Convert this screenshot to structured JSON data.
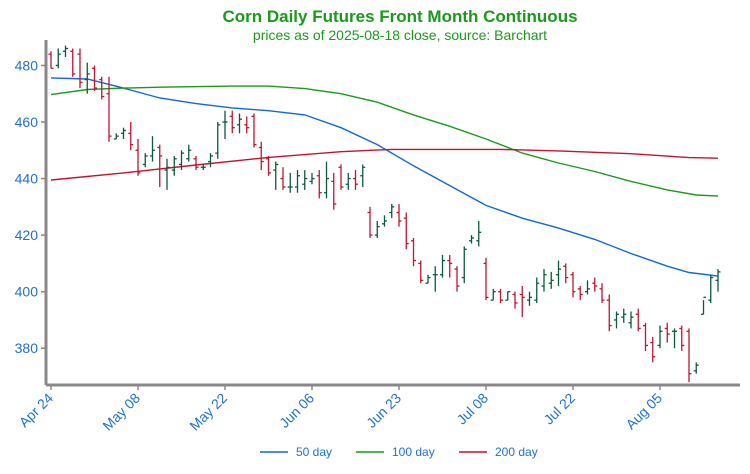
{
  "chart_data": {
    "type": "ohlc",
    "title": "Corn Daily Futures Front Month Continuous",
    "subtitle": "prices as of 2025-08-18 close, source: Barchart",
    "xlabel": "",
    "ylabel": "",
    "ylim": [
      367,
      489
    ],
    "y_ticks": [
      380,
      400,
      420,
      440,
      460,
      480
    ],
    "x_ticks": [
      "Apr 24",
      "May 08",
      "May 22",
      "Jun 06",
      "Jun 23",
      "Jul 08",
      "Jul 22",
      "Aug 05"
    ],
    "grid": false,
    "legend_position": "bottom",
    "colors": {
      "title": "#1a9a1a",
      "axis_text": "#1f6fd9",
      "up": "#0c5a3c",
      "down": "#c0152f",
      "ma50": "#1166dd",
      "ma100": "#1a9a1a",
      "ma200": "#c0152f",
      "axis": "#888888"
    },
    "ohlc": [
      [
        484,
        485,
        479,
        479
      ],
      [
        480,
        486,
        479,
        484
      ],
      [
        485,
        487,
        483,
        486
      ],
      [
        485,
        486,
        476,
        477
      ],
      [
        484,
        486,
        472,
        474
      ],
      [
        475,
        481,
        470,
        477
      ],
      [
        479,
        480,
        471,
        472
      ],
      [
        475,
        476,
        468,
        469
      ],
      [
        470,
        476,
        453,
        455
      ],
      [
        454,
        456,
        454,
        455
      ],
      [
        456,
        458,
        454,
        457
      ],
      [
        456,
        460,
        450,
        452
      ],
      [
        450,
        454,
        441,
        442
      ],
      [
        445,
        449,
        444,
        448
      ],
      [
        448,
        455,
        446,
        450
      ],
      [
        451,
        452,
        437,
        448
      ],
      [
        443,
        447,
        436,
        444
      ],
      [
        443,
        448,
        441,
        447
      ],
      [
        445,
        450,
        443,
        449
      ],
      [
        447,
        452,
        446,
        450
      ],
      [
        447,
        448,
        443,
        444
      ],
      [
        444,
        445,
        443,
        444
      ],
      [
        446,
        449,
        444,
        448
      ],
      [
        449,
        460,
        447,
        459
      ],
      [
        460,
        464,
        454,
        460
      ],
      [
        462,
        464,
        456,
        458
      ],
      [
        459,
        463,
        456,
        461
      ],
      [
        459,
        462,
        456,
        458
      ],
      [
        462,
        463,
        451,
        452
      ],
      [
        451,
        453,
        443,
        446
      ],
      [
        447,
        448,
        441,
        442
      ],
      [
        443,
        446,
        436,
        445
      ],
      [
        440,
        444,
        436,
        437
      ],
      [
        437,
        442,
        435,
        437
      ],
      [
        437,
        443,
        435,
        441
      ],
      [
        438,
        443,
        436,
        440
      ],
      [
        439,
        442,
        438,
        440
      ],
      [
        441,
        443,
        433,
        435
      ],
      [
        435,
        446,
        433,
        440
      ],
      [
        439,
        442,
        429,
        431
      ],
      [
        444,
        445,
        436,
        437
      ],
      [
        438,
        442,
        436,
        440
      ],
      [
        440,
        443,
        436,
        438
      ],
      [
        441,
        445,
        437,
        444
      ],
      [
        428,
        430,
        419,
        420
      ],
      [
        420,
        425,
        419,
        423
      ],
      [
        424,
        427,
        423,
        425
      ],
      [
        428,
        431,
        426,
        430
      ],
      [
        428,
        431,
        423,
        425
      ],
      [
        426,
        428,
        415,
        417
      ],
      [
        418,
        419,
        409,
        411
      ],
      [
        410,
        411,
        403,
        404
      ],
      [
        403,
        406,
        403,
        405
      ],
      [
        406,
        409,
        400,
        406
      ],
      [
        406,
        413,
        405,
        411
      ],
      [
        411,
        413,
        405,
        410
      ],
      [
        408,
        409,
        400,
        402
      ],
      [
        405,
        416,
        403,
        415
      ],
      [
        418,
        420,
        417,
        419
      ],
      [
        418,
        425,
        416,
        421
      ],
      [
        410,
        412,
        397,
        398
      ],
      [
        397,
        401,
        397,
        400
      ],
      [
        400,
        401,
        396,
        397
      ],
      [
        397,
        400,
        397,
        400
      ],
      [
        399,
        400,
        394,
        396
      ],
      [
        399,
        402,
        391,
        398
      ],
      [
        397,
        400,
        395,
        398
      ],
      [
        397,
        405,
        396,
        403
      ],
      [
        402,
        408,
        400,
        406
      ],
      [
        403,
        407,
        401,
        404
      ],
      [
        406,
        411,
        402,
        408
      ],
      [
        409,
        410,
        403,
        405
      ],
      [
        406,
        407,
        398,
        400
      ],
      [
        401,
        402,
        397,
        399
      ],
      [
        400,
        404,
        399,
        401
      ],
      [
        403,
        405,
        400,
        402
      ],
      [
        401,
        403,
        396,
        397
      ],
      [
        397,
        399,
        386,
        388
      ],
      [
        390,
        393,
        387,
        392
      ],
      [
        391,
        394,
        389,
        392
      ],
      [
        389,
        393,
        387,
        391
      ],
      [
        392,
        394,
        386,
        387
      ],
      [
        388,
        389,
        379,
        381
      ],
      [
        382,
        384,
        375,
        377
      ],
      [
        381,
        388,
        380,
        386
      ],
      [
        387,
        389,
        382,
        385
      ],
      [
        386,
        387,
        380,
        386
      ],
      [
        387,
        388,
        379,
        381
      ],
      [
        386,
        387,
        368,
        371
      ],
      [
        372,
        375,
        371,
        374
      ],
      [
        392,
        397,
        392,
        398
      ],
      [
        397,
        406,
        396,
        405
      ],
      [
        404,
        408,
        400,
        407
      ]
    ],
    "series": [
      {
        "name": "50 day",
        "color": "#1166dd",
        "points": [
          [
            0,
            475.6
          ],
          [
            5,
            475.2
          ],
          [
            10,
            472.0
          ],
          [
            15,
            468.5
          ],
          [
            20,
            466.5
          ],
          [
            25,
            465.0
          ],
          [
            30,
            464.0
          ],
          [
            35,
            462.5
          ],
          [
            40,
            458.0
          ],
          [
            45,
            452.0
          ],
          [
            50,
            444.5
          ],
          [
            55,
            437.5
          ],
          [
            60,
            430.5
          ],
          [
            65,
            426.0
          ],
          [
            70,
            422.5
          ],
          [
            75,
            418.5
          ],
          [
            80,
            413.5
          ],
          [
            85,
            409.0
          ],
          [
            88,
            406.8
          ],
          [
            92,
            405.5
          ]
        ]
      },
      {
        "name": "100 day",
        "color": "#1a9a1a",
        "points": [
          [
            0,
            469.7
          ],
          [
            5,
            471.5
          ],
          [
            10,
            472.0
          ],
          [
            15,
            472.3
          ],
          [
            25,
            472.7
          ],
          [
            30,
            472.7
          ],
          [
            35,
            471.8
          ],
          [
            40,
            470.0
          ],
          [
            45,
            467.0
          ],
          [
            50,
            462.5
          ],
          [
            55,
            458.5
          ],
          [
            60,
            454.0
          ],
          [
            65,
            449.0
          ],
          [
            70,
            445.5
          ],
          [
            75,
            442.5
          ],
          [
            80,
            439.0
          ],
          [
            85,
            436.0
          ],
          [
            89,
            434.2
          ],
          [
            92,
            433.8
          ]
        ]
      },
      {
        "name": "200 day",
        "color": "#c0152f",
        "points": [
          [
            0,
            439.5
          ],
          [
            10,
            442.0
          ],
          [
            20,
            444.8
          ],
          [
            30,
            447.5
          ],
          [
            40,
            449.5
          ],
          [
            47,
            450.3
          ],
          [
            55,
            450.3
          ],
          [
            62,
            450.3
          ],
          [
            70,
            449.8
          ],
          [
            80,
            448.8
          ],
          [
            88,
            447.4
          ],
          [
            92,
            447.2
          ]
        ]
      }
    ]
  }
}
